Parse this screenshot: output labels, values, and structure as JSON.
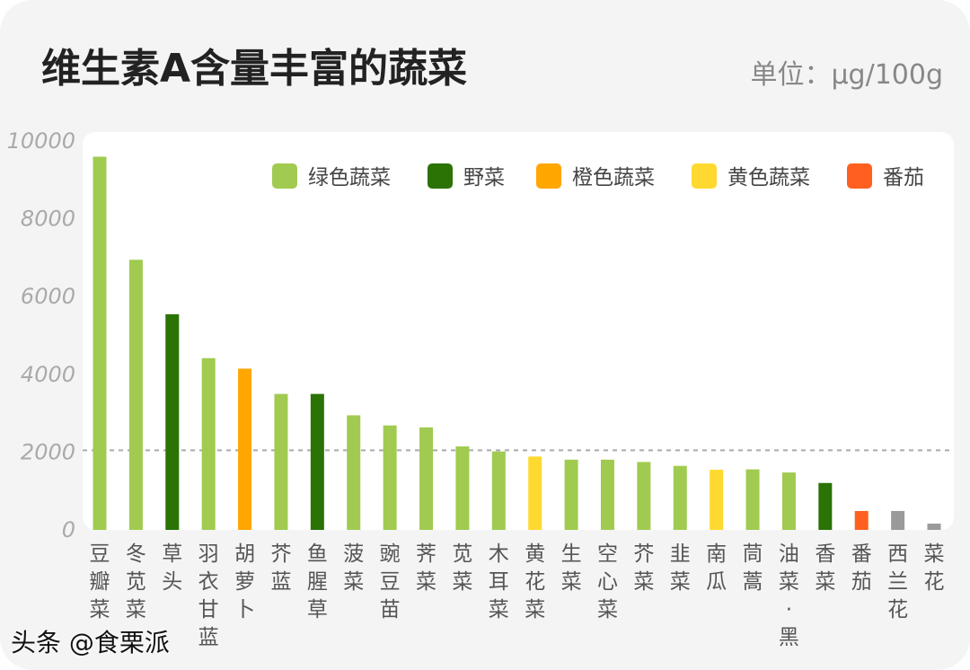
{
  "title": "维生素A含量丰富的蔬菜",
  "unit": "单位：μg/100g",
  "watermark": "头条 @食栗派",
  "chart_data": {
    "type": "bar",
    "title": "维生素A含量丰富的蔬菜",
    "ylabel": "单位：μg/100g",
    "ylim": [
      0,
      10000
    ],
    "yticks": [
      0,
      2000,
      4000,
      6000,
      8000,
      10000
    ],
    "reference_line": 2000,
    "legend_position": "top-right",
    "legend": [
      {
        "name": "绿色蔬菜",
        "color": "#a0cb50"
      },
      {
        "name": "野菜",
        "color": "#2a7304"
      },
      {
        "name": "橙色蔬菜",
        "color": "#ffa600"
      },
      {
        "name": "黄色蔬菜",
        "color": "#ffd92f"
      },
      {
        "name": "番茄",
        "color": "#ff6020"
      }
    ],
    "other_color": "#9a9a9a",
    "categories": [
      "豆瓣菜",
      "冬苋菜",
      "草头",
      "羽衣甘蓝",
      "胡萝卜",
      "芥蓝",
      "鱼腥草",
      "菠菜",
      "豌豆苗",
      "荠菜",
      "苋菜",
      "木耳菜",
      "黄花菜",
      "生菜",
      "空心菜",
      "芥菜",
      "韭菜",
      "南瓜",
      "茼蒿",
      "油菜·黑",
      "香菜",
      "番茄",
      "西兰花",
      "菜花"
    ],
    "values": [
      9550,
      6900,
      5500,
      4370,
      4100,
      3450,
      3450,
      2900,
      2640,
      2590,
      2100,
      1970,
      1840,
      1760,
      1760,
      1700,
      1600,
      1500,
      1510,
      1430,
      1160,
      440,
      440,
      115
    ],
    "groups": [
      "绿色蔬菜",
      "绿色蔬菜",
      "野菜",
      "绿色蔬菜",
      "橙色蔬菜",
      "绿色蔬菜",
      "野菜",
      "绿色蔬菜",
      "绿色蔬菜",
      "绿色蔬菜",
      "绿色蔬菜",
      "绿色蔬菜",
      "黄色蔬菜",
      "绿色蔬菜",
      "绿色蔬菜",
      "绿色蔬菜",
      "绿色蔬菜",
      "黄色蔬菜",
      "绿色蔬菜",
      "绿色蔬菜",
      "野菜",
      "番茄",
      "other",
      "other"
    ]
  }
}
